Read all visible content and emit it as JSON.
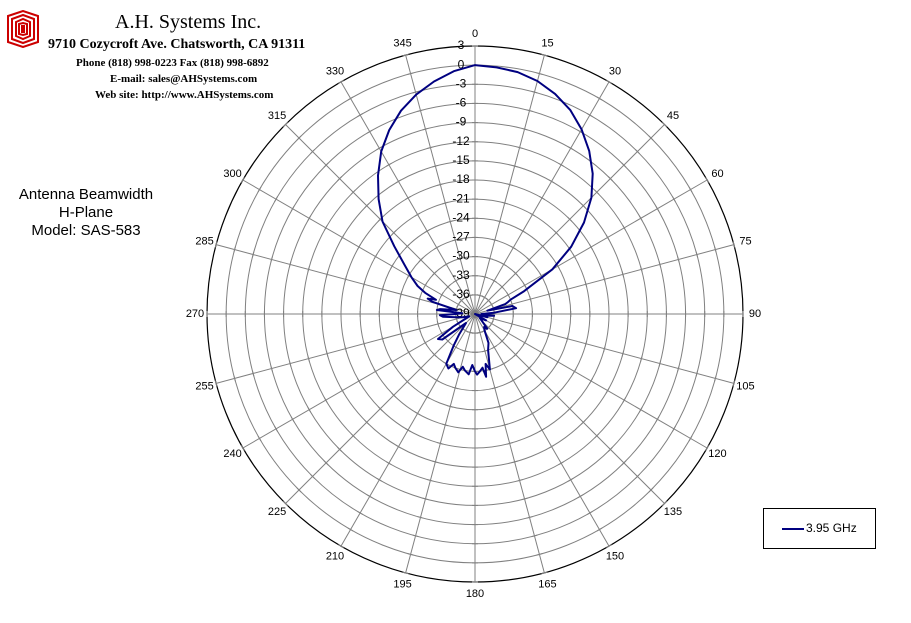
{
  "header": {
    "company": "A.H. Systems Inc.",
    "address": "9710 Cozycroft Ave. Chatsworth, CA 91311",
    "phone": "Phone (818) 998-0223 Fax (818) 998-6892",
    "email": "E-mail: sales@AHSystems.com",
    "website": "Web site: http://www.AHSystems.com",
    "logo_color": "#cc0000"
  },
  "chart_data": {
    "type": "polar-line",
    "title_lines": [
      "Antenna Beamwidth",
      "H-Plane",
      "Model: SAS-583"
    ],
    "angle_unit": "degrees",
    "angle_ticks": [
      0,
      15,
      30,
      45,
      60,
      75,
      90,
      105,
      120,
      135,
      150,
      165,
      180,
      195,
      210,
      225,
      240,
      255,
      270,
      285,
      300,
      315,
      330,
      345
    ],
    "radial_axis": {
      "min": -39,
      "max": 3,
      "ticks": [
        3,
        0,
        -3,
        -6,
        -9,
        -12,
        -15,
        -18,
        -21,
        -24,
        -27,
        -30,
        -33,
        -36,
        -39
      ],
      "unit": "dB"
    },
    "grid": true,
    "legend_position": "bottom-right",
    "series": [
      {
        "name": "3.95 GHz",
        "color": "#000080",
        "points": [
          [
            0,
            0
          ],
          [
            5,
            -0.2
          ],
          [
            10,
            -0.5
          ],
          [
            15,
            -1.2
          ],
          [
            20,
            -2.3
          ],
          [
            25,
            -3.7
          ],
          [
            30,
            -5.6
          ],
          [
            35,
            -7.8
          ],
          [
            40,
            -10.3
          ],
          [
            45,
            -13.2
          ],
          [
            50,
            -16.7
          ],
          [
            55,
            -20.6
          ],
          [
            60,
            -25
          ],
          [
            65,
            -30.5
          ],
          [
            68,
            -33
          ],
          [
            70,
            -33.5
          ],
          [
            72,
            -34
          ],
          [
            75,
            -37
          ],
          [
            78,
            -33
          ],
          [
            82,
            -32.5
          ],
          [
            86,
            -36
          ],
          [
            90,
            -38
          ],
          [
            95,
            -36
          ],
          [
            100,
            -37.5
          ],
          [
            105,
            -37
          ],
          [
            110,
            -39
          ],
          [
            120,
            -37
          ],
          [
            130,
            -38
          ],
          [
            140,
            -36
          ],
          [
            145,
            -36.5
          ],
          [
            150,
            -36
          ],
          [
            155,
            -34
          ],
          [
            160,
            -33
          ],
          [
            165,
            -30
          ],
          [
            168,
            -31
          ],
          [
            170,
            -29
          ],
          [
            172,
            -30.5
          ],
          [
            175,
            -30
          ],
          [
            178,
            -29.5
          ],
          [
            180,
            -30
          ],
          [
            183,
            -31
          ],
          [
            186,
            -29.5
          ],
          [
            190,
            -30
          ],
          [
            193,
            -30.5
          ],
          [
            196,
            -29.5
          ],
          [
            200,
            -30
          ],
          [
            203,
            -30.5
          ],
          [
            206,
            -29.5
          ],
          [
            210,
            -30
          ],
          [
            214,
            -33
          ],
          [
            218,
            -35
          ],
          [
            225,
            -37
          ],
          [
            232,
            -32.5
          ],
          [
            236,
            -32
          ],
          [
            240,
            -35
          ],
          [
            248,
            -38
          ],
          [
            255,
            -37
          ],
          [
            260,
            -36
          ],
          [
            265,
            -34
          ],
          [
            268,
            -33.5
          ],
          [
            270,
            -36
          ],
          [
            273,
            -37
          ],
          [
            276,
            -33
          ],
          [
            278,
            -33.5
          ],
          [
            282,
            -36
          ],
          [
            286,
            -32
          ],
          [
            288,
            -31.2
          ],
          [
            290,
            -32.5
          ],
          [
            293,
            -30.5
          ],
          [
            296,
            -29
          ],
          [
            300,
            -27.5
          ],
          [
            305,
            -25.5
          ],
          [
            310,
            -22.5
          ],
          [
            315,
            -18.5
          ],
          [
            320,
            -15.5
          ],
          [
            325,
            -12.5
          ],
          [
            330,
            -9.6
          ],
          [
            335,
            -7.2
          ],
          [
            340,
            -5.1
          ],
          [
            345,
            -3.4
          ],
          [
            350,
            -2
          ],
          [
            355,
            -0.8
          ],
          [
            360,
            0
          ]
        ]
      }
    ]
  }
}
